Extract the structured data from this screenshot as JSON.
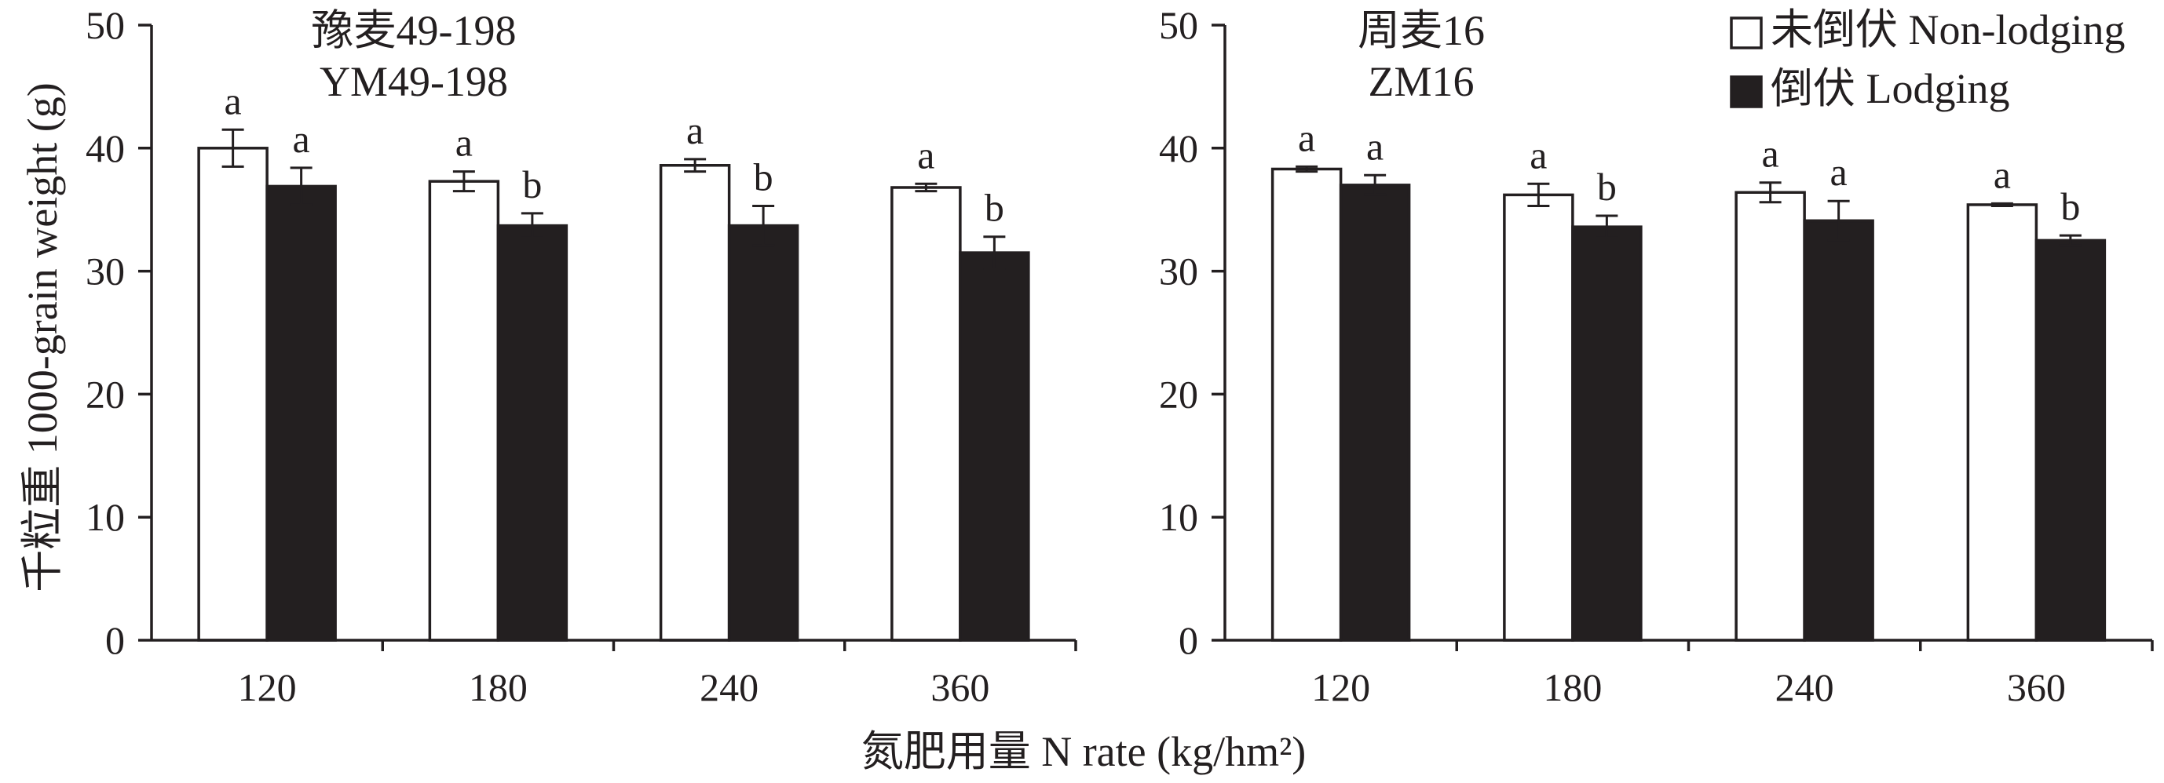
{
  "chart_data": [
    {
      "type": "bar",
      "title": [
        "豫麦49-198",
        "YM49-198"
      ],
      "xlabel": "氮肥用量 N rate (kg/hm²)",
      "ylabel": "千粒重 1000-grain weight (g)",
      "categories": [
        "120",
        "180",
        "240",
        "360"
      ],
      "ylim": [
        0,
        50
      ],
      "yticks": [
        0,
        10,
        20,
        30,
        40,
        50
      ],
      "grid": false,
      "series": [
        {
          "name": "未倒伏 Non-lodging",
          "values": [
            40.0,
            37.3,
            38.6,
            36.8
          ],
          "errors": [
            1.5,
            0.8,
            0.5,
            0.3
          ],
          "letters": [
            "a",
            "a",
            "a",
            "a"
          ]
        },
        {
          "name": "倒伏 Lodging",
          "values": [
            36.9,
            33.7,
            33.7,
            31.5
          ],
          "errors": [
            1.5,
            1.0,
            1.6,
            1.3
          ],
          "letters": [
            "a",
            "b",
            "b",
            "b"
          ]
        }
      ]
    },
    {
      "type": "bar",
      "title": [
        "周麦16",
        "ZM16"
      ],
      "categories": [
        "120",
        "180",
        "240",
        "360"
      ],
      "ylim": [
        0,
        50
      ],
      "yticks": [
        0,
        10,
        20,
        30,
        40,
        50
      ],
      "grid": false,
      "legend_position": "top-right",
      "series": [
        {
          "name": "未倒伏 Non-lodging",
          "values": [
            38.3,
            36.2,
            36.4,
            35.4
          ],
          "errors": [
            0.2,
            0.9,
            0.8,
            0.1
          ],
          "letters": [
            "a",
            "a",
            "a",
            "a"
          ]
        },
        {
          "name": "倒伏 Lodging",
          "values": [
            37.0,
            33.6,
            34.1,
            32.5
          ],
          "errors": [
            0.8,
            0.9,
            1.6,
            0.4
          ],
          "letters": [
            "a",
            "b",
            "a",
            "b"
          ]
        }
      ]
    }
  ],
  "colors": {
    "non_lodging": "#ffffff",
    "lodging": "#231f20",
    "axis": "#231f20",
    "background": "#ffffff"
  }
}
